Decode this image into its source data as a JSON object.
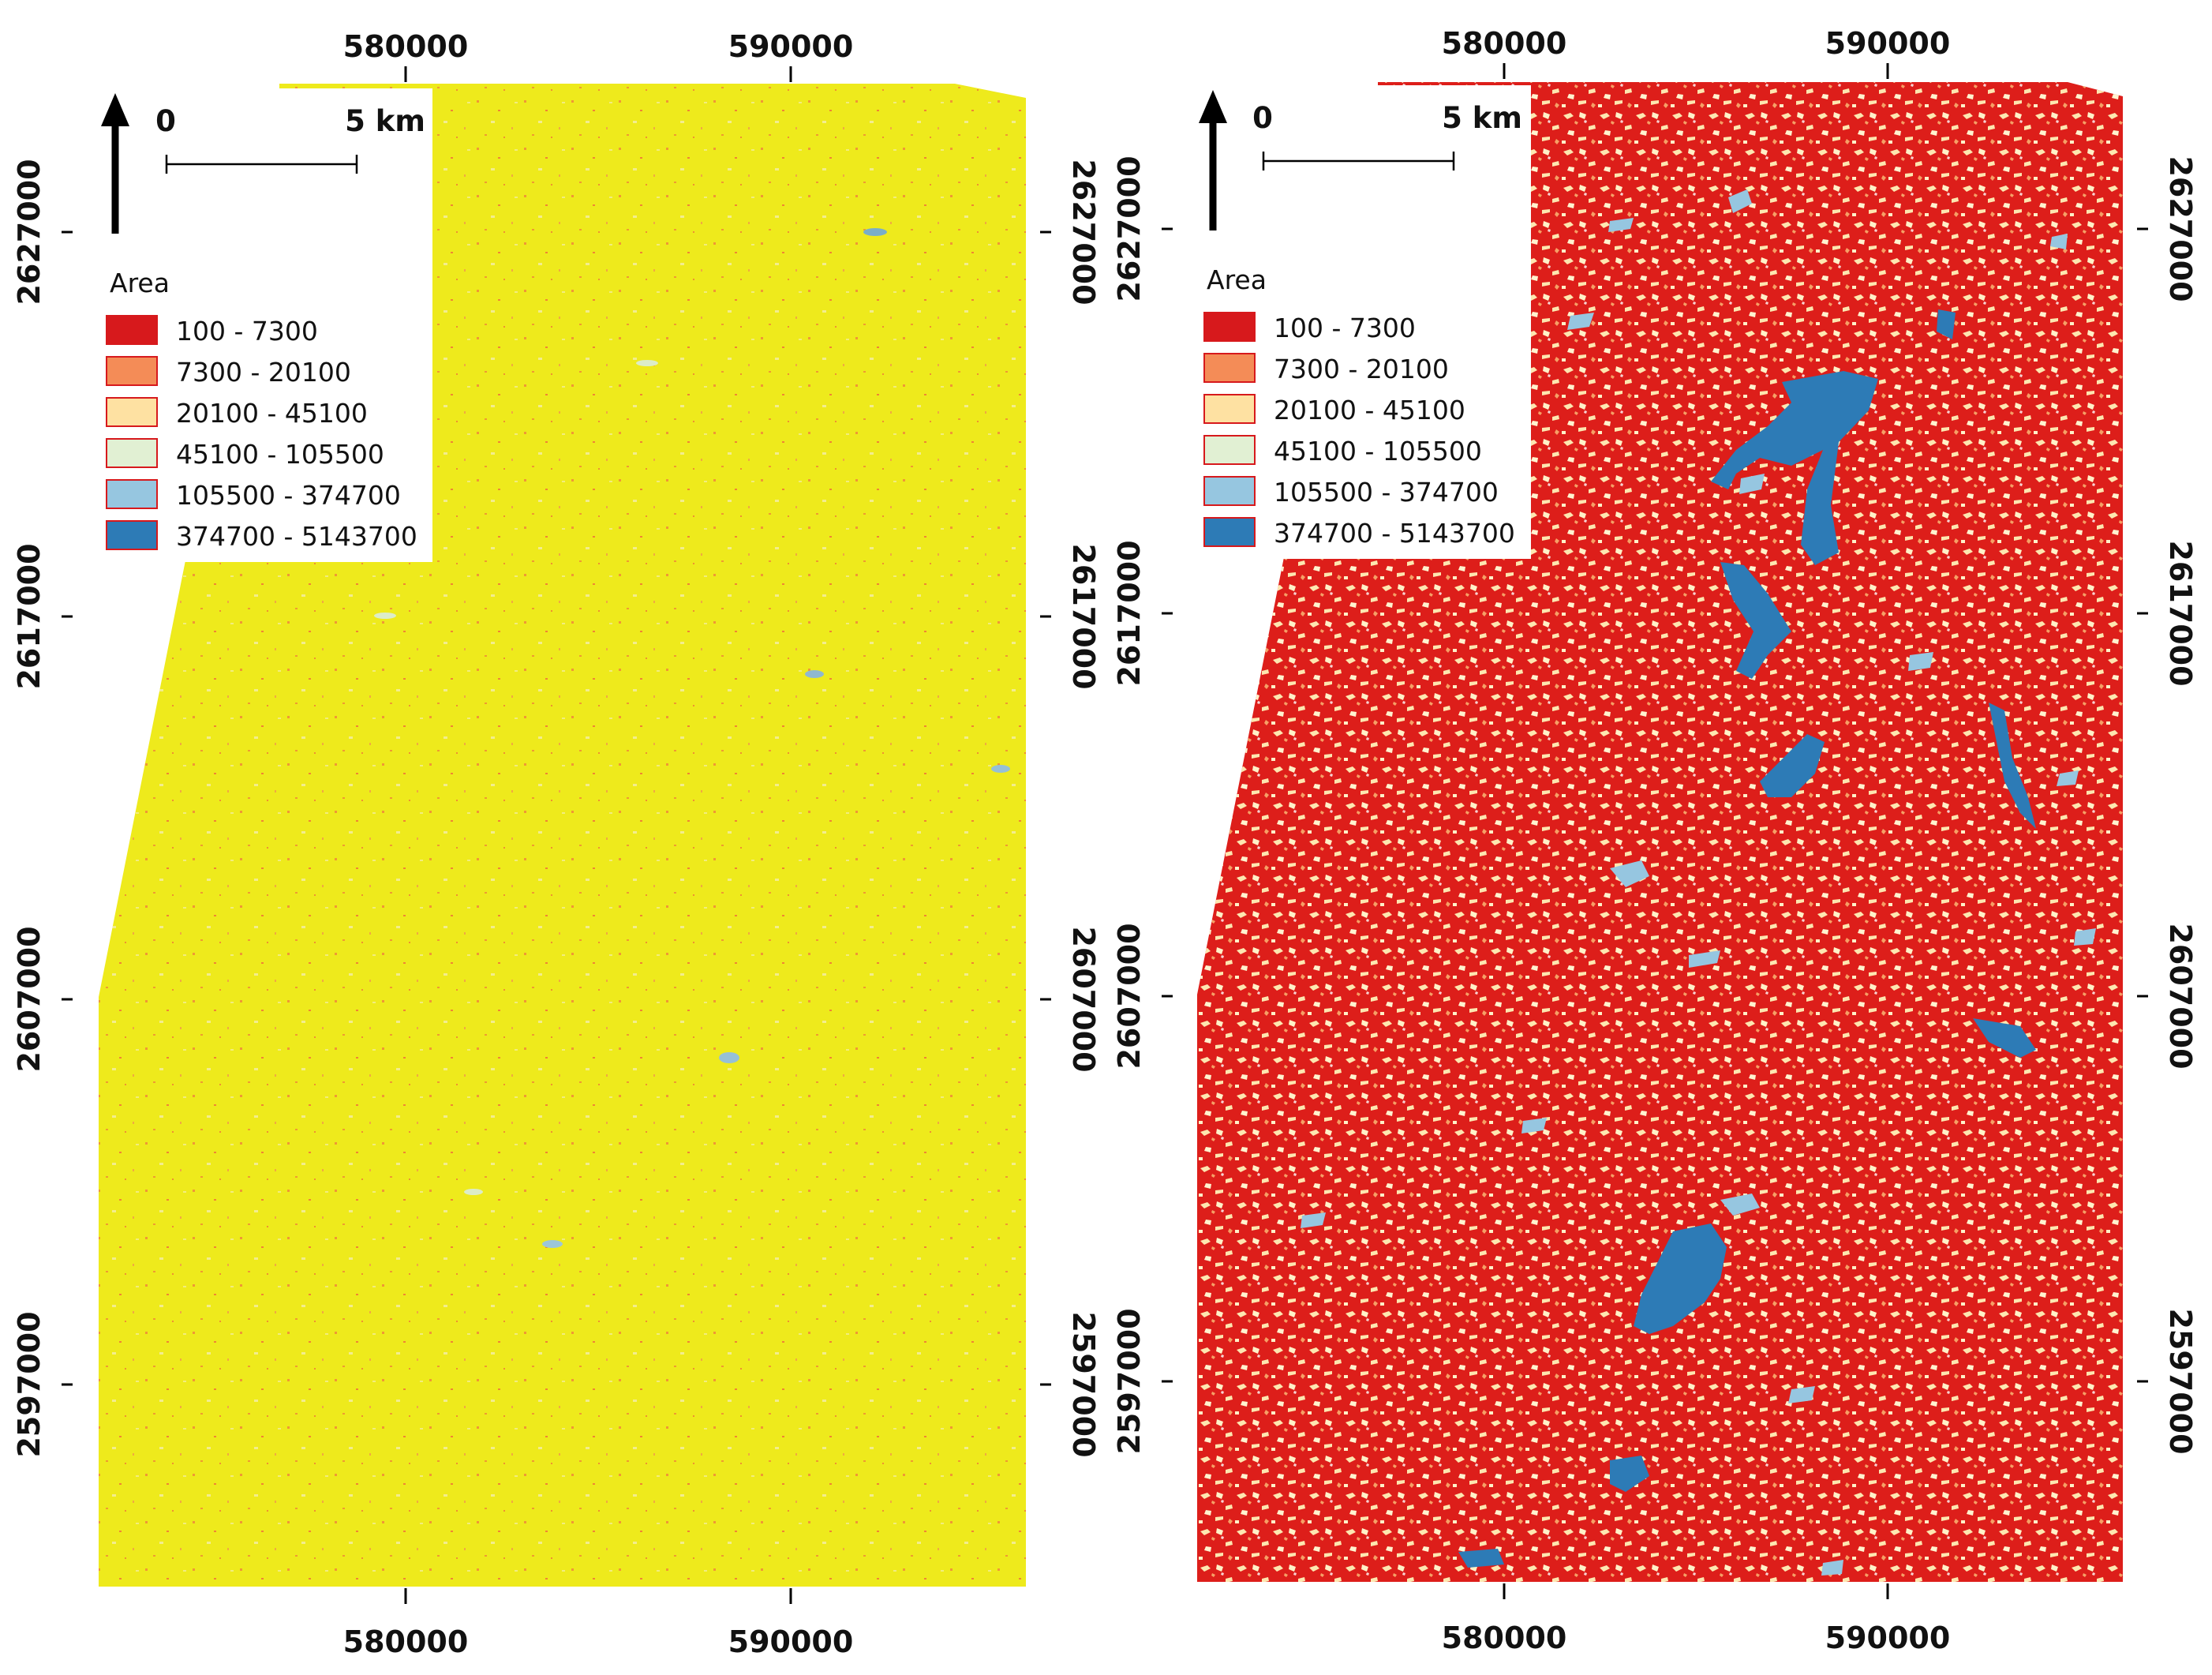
{
  "maps": [
    {
      "id": "left",
      "x_ticks": [
        "580000",
        "590000"
      ],
      "y_ticks": [
        "2627000",
        "2617000",
        "2607000",
        "2597000"
      ],
      "fill_color": "#eeea1c",
      "legend": {
        "title": "Area",
        "items": [
          {
            "label": "100 - 7300",
            "color": "#d7191c"
          },
          {
            "label": "7300 - 20100",
            "color": "#f48c57"
          },
          {
            "label": "20100 - 45100",
            "color": "#fee1a2"
          },
          {
            "label": "45100 - 105500",
            "color": "#e1f0d3"
          },
          {
            "label": "105500 - 374700",
            "color": "#96c6e0"
          },
          {
            "label": "374700 - 5143700",
            "color": "#2d7bb6"
          }
        ]
      },
      "scale_bar": {
        "start": "0",
        "end": "5 km"
      }
    },
    {
      "id": "right",
      "x_ticks": [
        "580000",
        "590000"
      ],
      "y_ticks": [
        "2627000",
        "2617000",
        "2607000",
        "2597000"
      ],
      "fill_color": "#dd1e1a",
      "legend": {
        "title": "Area",
        "items": [
          {
            "label": "100 - 7300",
            "color": "#d7191c"
          },
          {
            "label": "7300 - 20100",
            "color": "#f48c57"
          },
          {
            "label": "20100 - 45100",
            "color": "#fee1a2"
          },
          {
            "label": "45100 - 105500",
            "color": "#e1f0d3"
          },
          {
            "label": "105500 - 374700",
            "color": "#96c6e0"
          },
          {
            "label": "374700 - 5143700",
            "color": "#2d7bb6"
          }
        ]
      },
      "scale_bar": {
        "start": "0",
        "end": "5 km"
      }
    }
  ]
}
